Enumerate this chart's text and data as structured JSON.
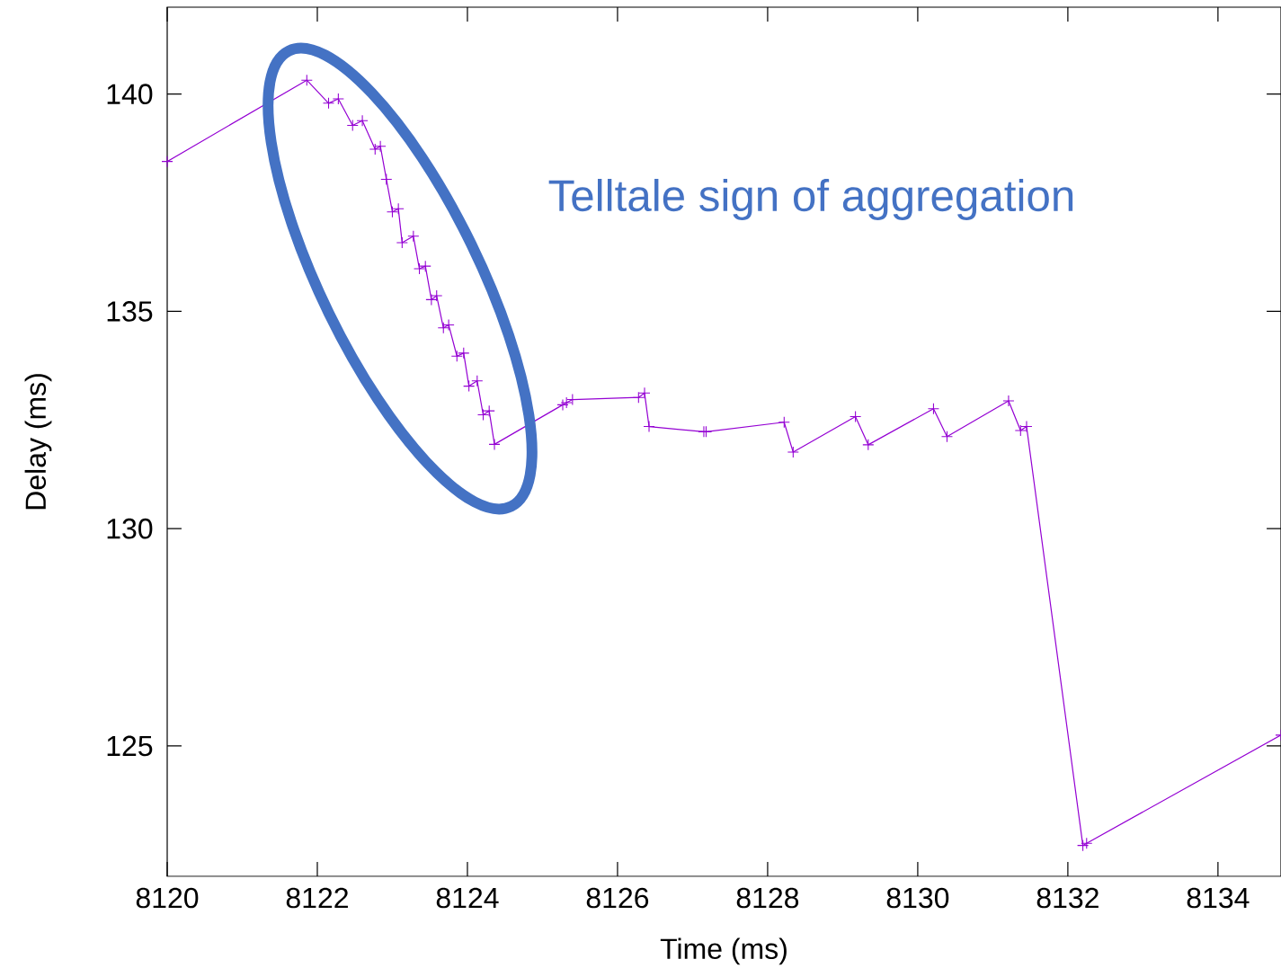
{
  "chart_data": {
    "type": "line",
    "xlabel": "Time (ms)",
    "ylabel": "Delay (ms)",
    "x": [
      8120,
      8121.86,
      8122.15,
      8122.28,
      8122.47,
      8122.6,
      8122.77,
      8122.84,
      8122.92,
      8123.0,
      8123.08,
      8123.13,
      8123.28,
      8123.36,
      8123.44,
      8123.52,
      8123.59,
      8123.68,
      8123.75,
      8123.86,
      8123.95,
      8124.02,
      8124.13,
      8124.21,
      8124.29,
      8124.36,
      8125.27,
      8125.32,
      8125.4,
      8126.28,
      8126.36,
      8126.42,
      8127.15,
      8127.18,
      8128.22,
      8128.34,
      8129.17,
      8129.34,
      8130.21,
      8130.39,
      8131.21,
      8131.37,
      8131.45,
      8132.2,
      8132.25,
      8134.84
    ],
    "series": [
      {
        "color": "#9400d3",
        "values": [
          138.45,
          140.32,
          139.79,
          139.89,
          139.28,
          139.39,
          138.73,
          138.8,
          138.04,
          137.29,
          137.36,
          136.58,
          136.73,
          135.98,
          136.04,
          135.27,
          135.36,
          134.62,
          134.69,
          133.97,
          134.04,
          133.28,
          133.4,
          132.62,
          132.71,
          131.94,
          132.85,
          132.9,
          132.97,
          133.02,
          133.12,
          132.35,
          132.23,
          132.23,
          132.45,
          131.76,
          132.58,
          131.93,
          132.76,
          132.12,
          132.94,
          132.26,
          132.35,
          122.71,
          122.76,
          125.25
        ]
      }
    ],
    "xlim": [
      8120,
      8134.84
    ],
    "ylim": [
      122,
      142
    ],
    "xticks": [
      8120,
      8122,
      8124,
      8126,
      8128,
      8130,
      8132,
      8134
    ],
    "yticks": [
      125,
      130,
      135,
      140
    ],
    "marker": "cross",
    "line_style": "solid",
    "grid": false,
    "annotations": [
      "Telltale sign of aggregation"
    ]
  }
}
